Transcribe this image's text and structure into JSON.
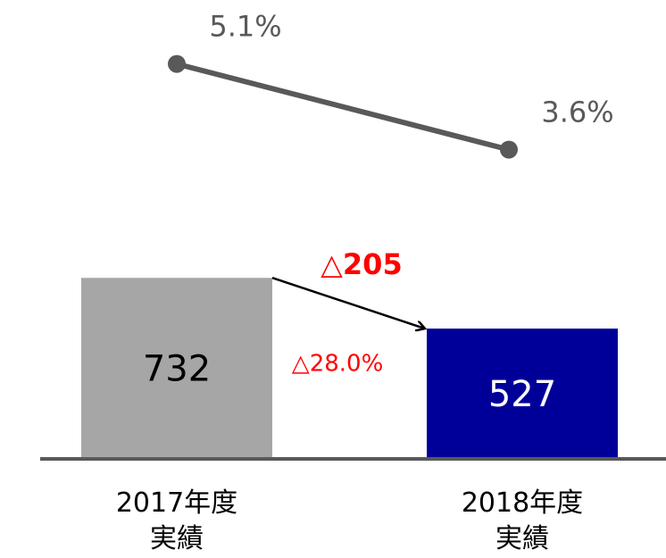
{
  "chart_data": {
    "type": "bar",
    "categories": [
      "2017年度\n実績",
      "2018年度\n実績"
    ],
    "series": [
      {
        "type": "bar",
        "colors": [
          "#a6a6a6",
          "#000099"
        ],
        "label_colors": [
          "#000000",
          "#ffffff"
        ],
        "values": [
          732,
          527
        ]
      },
      {
        "type": "line",
        "axis": "y2",
        "color": "#595959",
        "values": [
          5.1,
          3.6
        ],
        "value_labels": [
          "5.1%",
          "3.6%"
        ]
      }
    ],
    "ylim": [
      0,
      1000
    ],
    "y2lim": [
      0,
      6
    ],
    "annotations": [
      {
        "text": "△205",
        "color": "#ff0000"
      },
      {
        "text": "△28.0%",
        "color": "#ff0000"
      }
    ]
  }
}
